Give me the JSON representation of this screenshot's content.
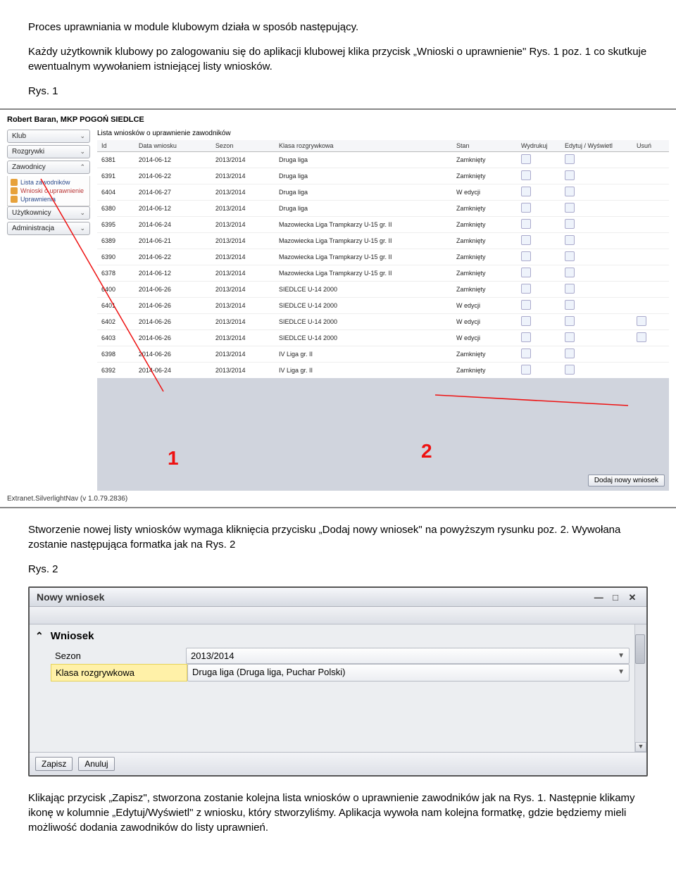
{
  "doc": {
    "p1": "Proces uprawniania w module klubowym działa w sposób następujący.",
    "p2": "Każdy użytkownik klubowy po zalogowaniu się do aplikacji klubowej klika przycisk „Wnioski o uprawnienie\" Rys. 1 poz. 1 co skutkuje ewentualnym wywołaniem istniejącej listy wniosków.",
    "rys1": "Rys. 1",
    "p3": "Stworzenie nowej listy wniosków wymaga kliknięcia przycisku „Dodaj nowy wniosek\" na powyższym rysunku poz. 2. Wywołana zostanie następująca formatka jak na Rys. 2",
    "rys2": "Rys. 2",
    "p4": "Klikając przycisk „Zapisz\", stworzona zostanie kolejna lista wniosków o uprawnienie zawodników jak na Rys. 1. Następnie klikamy ikonę w kolumnie „Edytuj/Wyświetl\" z wniosku, który stworzyliśmy. Aplikacja wywoła nam kolejna formatkę, gdzie będziemy mieli możliwość dodania zawodników do listy uprawnień."
  },
  "shot1": {
    "breadcrumb": "Robert Baran, MKP POGOŃ SIEDLCE",
    "nav": {
      "klub": "Klub",
      "rozgrywki": "Rozgrywki",
      "zawodnicy": "Zawodnicy",
      "lista": "Lista zawodników",
      "wnioski": "Wnioski o uprawnienie",
      "upraw": "Uprawnienia",
      "uzytk": "Użytkownicy",
      "admin": "Administracja"
    },
    "listTitle": "Lista wniosków o uprawnienie zawodników",
    "cols": {
      "id": "Id",
      "data": "Data wniosku",
      "sezon": "Sezon",
      "klasa": "Klasa rozgrywkowa",
      "stan": "Stan",
      "wyd": "Wydrukuj",
      "ed": "Edytuj / Wyświetl",
      "us": "Usuń"
    },
    "rows": [
      {
        "id": "6381",
        "d": "2014-06-12",
        "s": "2013/2014",
        "k": "Druga liga",
        "st": "Zamknięty",
        "u": false
      },
      {
        "id": "6391",
        "d": "2014-06-22",
        "s": "2013/2014",
        "k": "Druga liga",
        "st": "Zamknięty",
        "u": false
      },
      {
        "id": "6404",
        "d": "2014-06-27",
        "s": "2013/2014",
        "k": "Druga liga",
        "st": "W edycji",
        "u": false
      },
      {
        "id": "6380",
        "d": "2014-06-12",
        "s": "2013/2014",
        "k": "Druga liga",
        "st": "Zamknięty",
        "u": false
      },
      {
        "id": "6395",
        "d": "2014-06-24",
        "s": "2013/2014",
        "k": "Mazowiecka Liga Trampkarzy U-15 gr. II",
        "st": "Zamknięty",
        "u": false
      },
      {
        "id": "6389",
        "d": "2014-06-21",
        "s": "2013/2014",
        "k": "Mazowiecka Liga Trampkarzy U-15 gr. II",
        "st": "Zamknięty",
        "u": false
      },
      {
        "id": "6390",
        "d": "2014-06-22",
        "s": "2013/2014",
        "k": "Mazowiecka Liga Trampkarzy U-15 gr. II",
        "st": "Zamknięty",
        "u": false
      },
      {
        "id": "6378",
        "d": "2014-06-12",
        "s": "2013/2014",
        "k": "Mazowiecka Liga Trampkarzy U-15 gr. II",
        "st": "Zamknięty",
        "u": false
      },
      {
        "id": "6400",
        "d": "2014-06-26",
        "s": "2013/2014",
        "k": "SIEDLCE U-14 2000",
        "st": "Zamknięty",
        "u": false
      },
      {
        "id": "6401",
        "d": "2014-06-26",
        "s": "2013/2014",
        "k": "SIEDLCE U-14 2000",
        "st": "W edycji",
        "u": false
      },
      {
        "id": "6402",
        "d": "2014-06-26",
        "s": "2013/2014",
        "k": "SIEDLCE U-14 2000",
        "st": "W edycji",
        "u": true
      },
      {
        "id": "6403",
        "d": "2014-06-26",
        "s": "2013/2014",
        "k": "SIEDLCE U-14 2000",
        "st": "W edycji",
        "u": true
      },
      {
        "id": "6398",
        "d": "2014-06-26",
        "s": "2013/2014",
        "k": "IV Liga gr. II",
        "st": "Zamknięty",
        "u": false
      },
      {
        "id": "6392",
        "d": "2014-06-24",
        "s": "2013/2014",
        "k": "IV Liga gr. II",
        "st": "Zamknięty",
        "u": false
      }
    ],
    "addBtn": "Dodaj nowy wniosek",
    "ver": "Extranet.SilverlightNav (v 1.0.79.2836)",
    "call1": "1",
    "call2": "2"
  },
  "shot2": {
    "title": "Nowy wniosek",
    "group": "Wniosek",
    "sezonLab": "Sezon",
    "sezonVal": "2013/2014",
    "klasaLab": "Klasa rozgrywkowa",
    "klasaVal": "Druga liga (Druga liga, Puchar Polski)",
    "save": "Zapisz",
    "cancel": "Anuluj"
  },
  "style": {
    "red": "#e11"
  }
}
